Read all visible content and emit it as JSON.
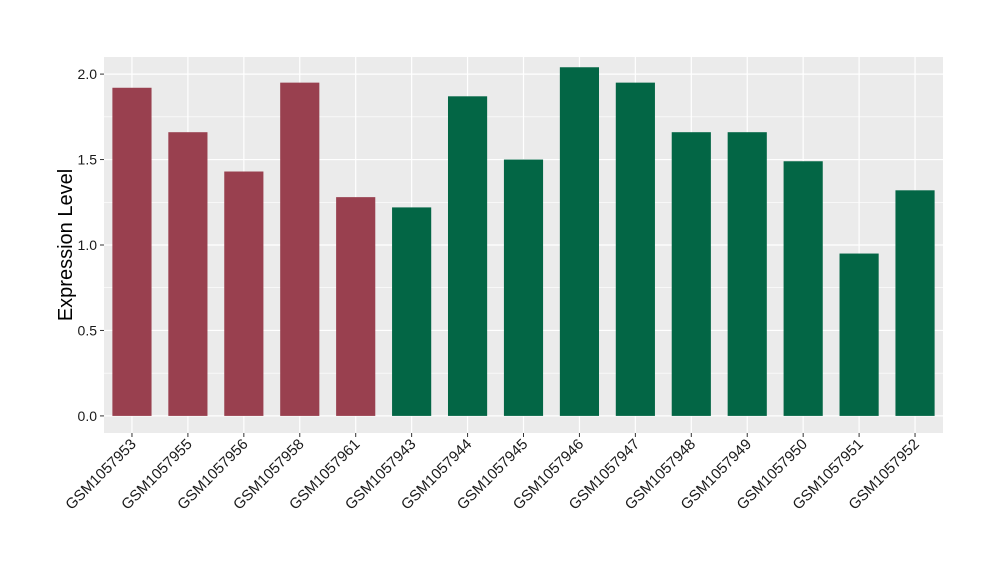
{
  "chart_data": {
    "type": "bar",
    "title": "",
    "xlabel": "",
    "ylabel": "Expression Level",
    "ylim": [
      -0.1,
      2.1
    ],
    "yticks": [
      0.0,
      0.5,
      1.0,
      1.5,
      2.0
    ],
    "ytick_labels": [
      "0.0",
      "0.5",
      "1.0",
      "1.5",
      "2.0"
    ],
    "grid": true,
    "legend": "none",
    "categories": [
      "GSM1057953",
      "GSM1057955",
      "GSM1057956",
      "GSM1057958",
      "GSM1057961",
      "GSM1057943",
      "GSM1057944",
      "GSM1057945",
      "GSM1057946",
      "GSM1057947",
      "GSM1057948",
      "GSM1057949",
      "GSM1057950",
      "GSM1057951",
      "GSM1057952"
    ],
    "values": [
      1.92,
      1.66,
      1.43,
      1.95,
      1.28,
      1.22,
      1.87,
      1.5,
      2.04,
      1.95,
      1.66,
      1.66,
      1.49,
      0.95,
      1.32
    ],
    "groups": [
      "a",
      "a",
      "a",
      "a",
      "a",
      "b",
      "b",
      "b",
      "b",
      "b",
      "b",
      "b",
      "b",
      "b",
      "b"
    ],
    "colors": {
      "a": "#99404f",
      "b": "#036645"
    },
    "panel_background": "#ebebeb",
    "gridline_color": "#ffffff"
  }
}
